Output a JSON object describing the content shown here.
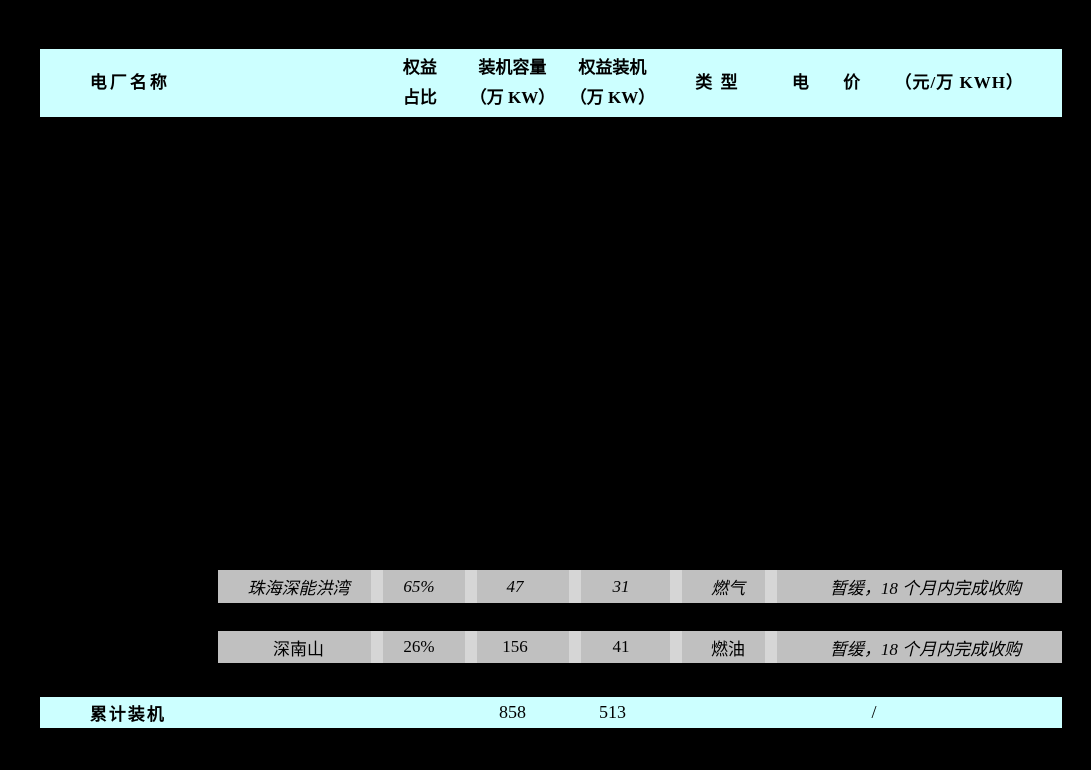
{
  "colors": {
    "background": "#000000",
    "header_bg": "#ccffff",
    "footer_bg": "#ccffff",
    "row_bg": "#c0c0c0",
    "row_gap": "#d6d6d6",
    "text": "#000000"
  },
  "table": {
    "header": {
      "plant_name": "电厂名称",
      "equity_ratio": [
        "权益",
        "占比"
      ],
      "capacity": [
        "装机容量",
        "（万 KW）"
      ],
      "equity_capacity": [
        "权益装机",
        "（万 KW）"
      ],
      "type": "类 型",
      "price_label_1": "电",
      "price_label_2": "价",
      "price_unit": "（元/万 KWH）"
    },
    "rows": [
      {
        "name": "珠海深能洪湾",
        "equity_ratio": "65%",
        "capacity": "47",
        "equity_capacity": "31",
        "type": "燃气",
        "price": "暂缓，18 个月内完成收购"
      },
      {
        "name": "深南山",
        "equity_ratio": "26%",
        "capacity": "156",
        "equity_capacity": "41",
        "type": "燃油",
        "price": "暂缓，18 个月内完成收购"
      }
    ],
    "footer": {
      "label": "累计装机",
      "capacity": "858",
      "equity_capacity": "513",
      "price": "/"
    }
  }
}
